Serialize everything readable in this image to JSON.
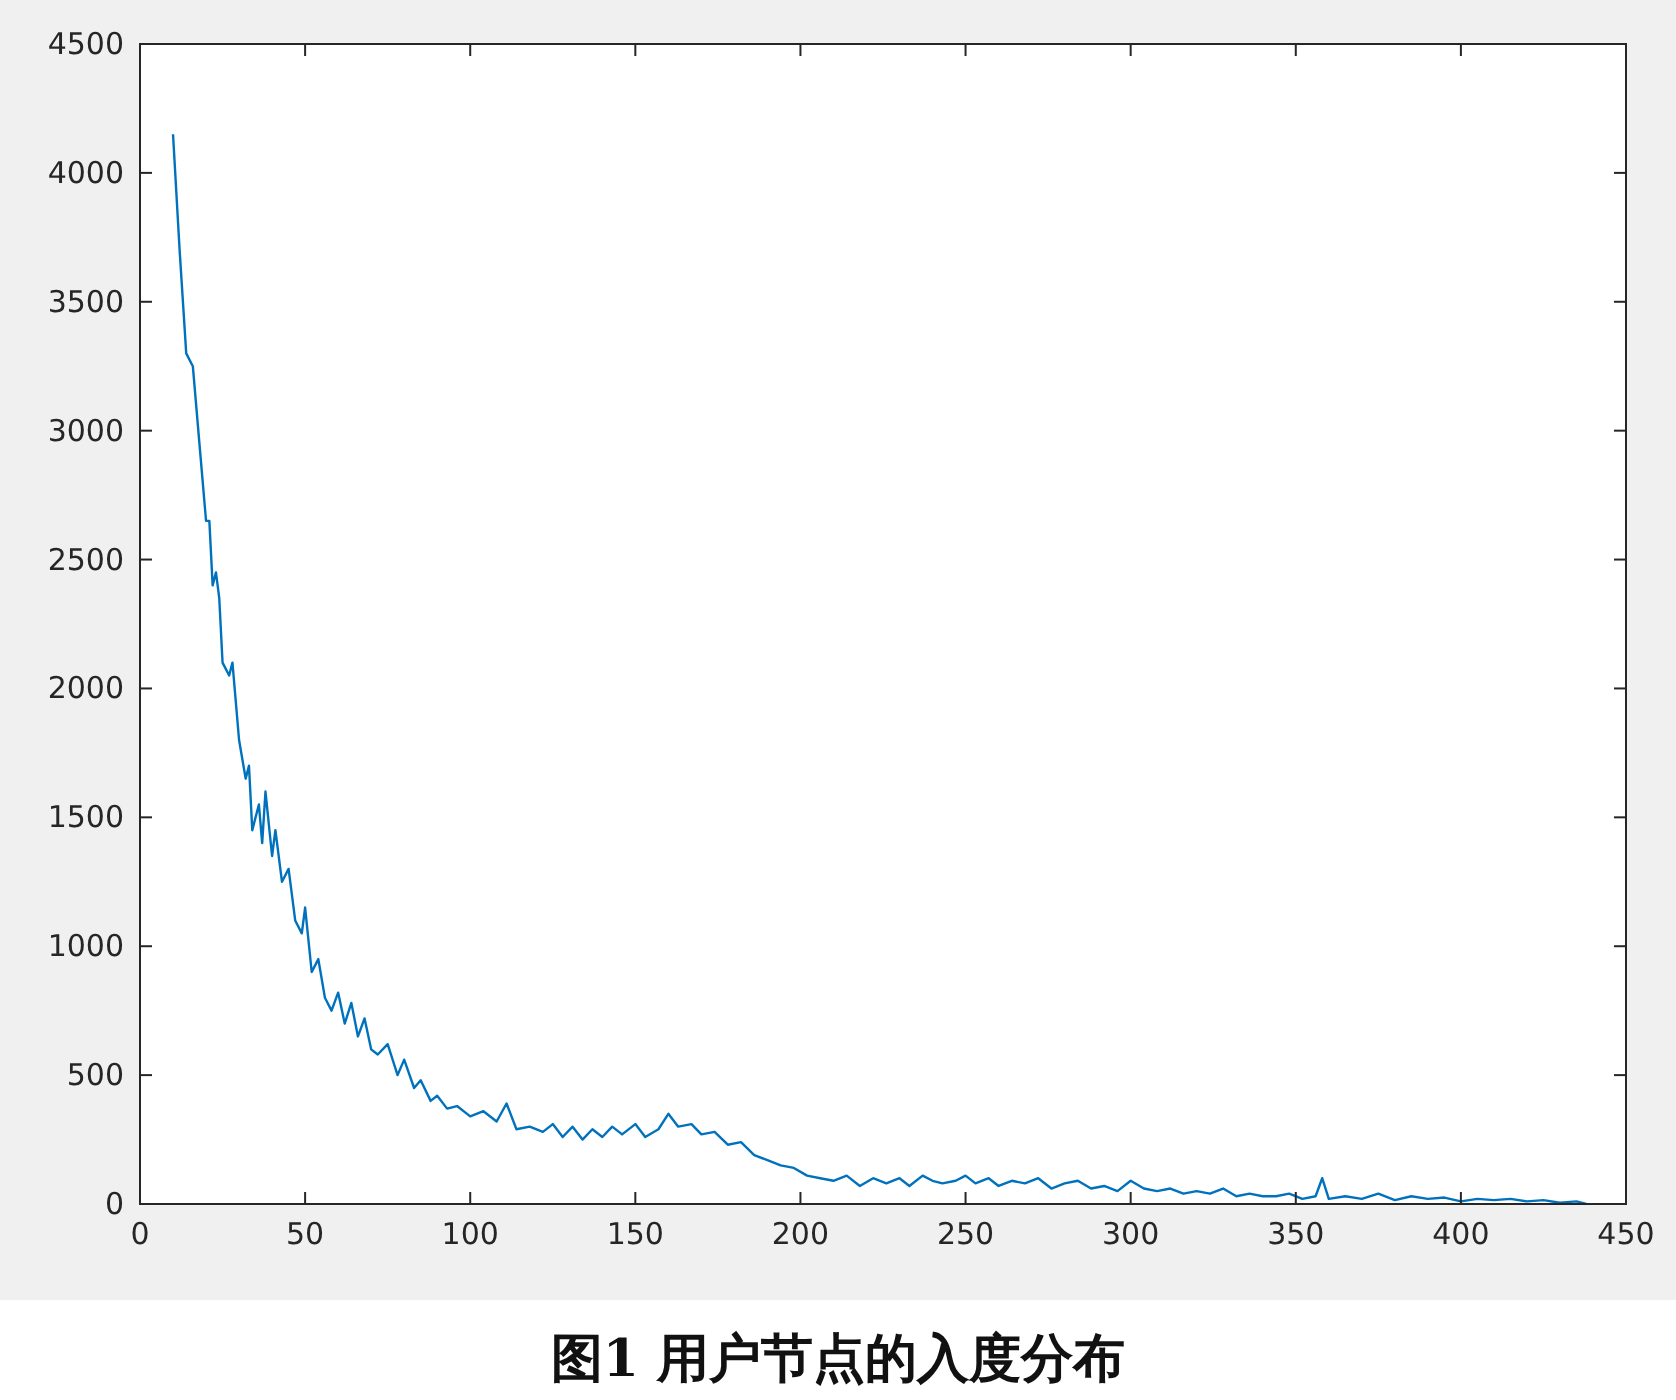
{
  "chart_data": {
    "type": "line",
    "annotations": [
      "图1  用户节点的入度分布"
    ],
    "x": [
      10,
      12,
      14,
      16,
      18,
      20,
      21,
      22,
      23,
      24,
      25,
      27,
      28,
      30,
      32,
      33,
      34,
      36,
      37,
      38,
      40,
      41,
      43,
      45,
      47,
      49,
      50,
      52,
      54,
      56,
      58,
      60,
      62,
      64,
      66,
      68,
      70,
      72,
      75,
      78,
      80,
      83,
      85,
      88,
      90,
      93,
      96,
      100,
      104,
      108,
      111,
      114,
      118,
      122,
      125,
      128,
      131,
      134,
      137,
      140,
      143,
      146,
      150,
      153,
      157,
      160,
      163,
      167,
      170,
      174,
      178,
      182,
      186,
      190,
      194,
      198,
      202,
      206,
      210,
      214,
      218,
      222,
      226,
      230,
      233,
      237,
      240,
      243,
      247,
      250,
      253,
      257,
      260,
      264,
      268,
      272,
      276,
      280,
      284,
      288,
      292,
      296,
      300,
      304,
      308,
      312,
      316,
      320,
      324,
      328,
      332,
      336,
      340,
      344,
      348,
      352,
      356,
      358,
      360,
      365,
      370,
      375,
      380,
      385,
      390,
      395,
      400,
      405,
      410,
      415,
      420,
      425,
      430,
      435,
      438
    ],
    "series": [
      {
        "color": "#0072bd",
        "values": [
          4150,
          3700,
          3300,
          3250,
          2950,
          2650,
          2650,
          2400,
          2450,
          2350,
          2100,
          2050,
          2100,
          1800,
          1650,
          1700,
          1450,
          1550,
          1400,
          1600,
          1350,
          1450,
          1250,
          1300,
          1100,
          1050,
          1150,
          900,
          950,
          800,
          750,
          820,
          700,
          780,
          650,
          720,
          600,
          580,
          620,
          500,
          560,
          450,
          480,
          400,
          420,
          370,
          380,
          340,
          360,
          320,
          390,
          290,
          300,
          280,
          310,
          260,
          300,
          250,
          290,
          260,
          300,
          270,
          310,
          260,
          290,
          350,
          300,
          310,
          270,
          280,
          230,
          240,
          190,
          170,
          150,
          140,
          110,
          100,
          90,
          110,
          70,
          100,
          80,
          100,
          70,
          110,
          90,
          80,
          90,
          110,
          80,
          100,
          70,
          90,
          80,
          100,
          60,
          80,
          90,
          60,
          70,
          50,
          90,
          60,
          50,
          60,
          40,
          50,
          40,
          60,
          30,
          40,
          30,
          30,
          40,
          20,
          30,
          100,
          20,
          30,
          20,
          40,
          15,
          30,
          20,
          25,
          10,
          20,
          15,
          20,
          10,
          15,
          5,
          10,
          0
        ]
      }
    ],
    "xlim": [
      0,
      450
    ],
    "ylim": [
      0,
      4500
    ],
    "xticks": [
      0,
      50,
      100,
      150,
      200,
      250,
      300,
      350,
      400,
      450
    ],
    "yticks": [
      0,
      500,
      1000,
      1500,
      2000,
      2500,
      3000,
      3500,
      4000,
      4500
    ],
    "grid": false,
    "marker": "none",
    "line_style": "solid"
  }
}
